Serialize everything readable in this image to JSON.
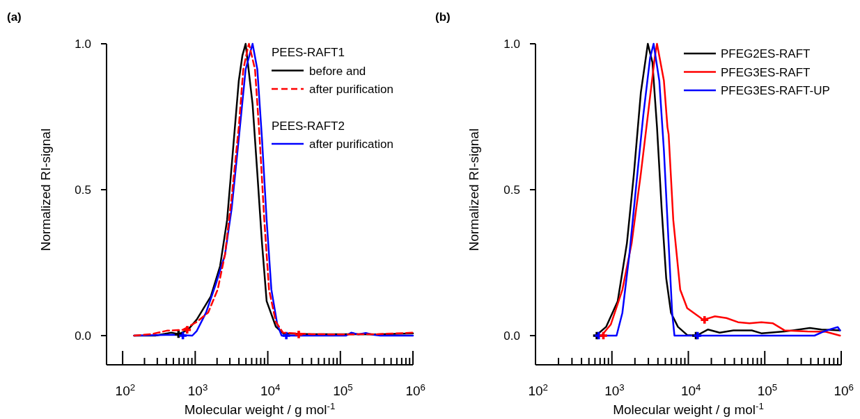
{
  "chart_data": [
    {
      "type": "line",
      "title": "(a)",
      "xlabel": "Molecular weight / g mol$^{-1}$",
      "ylabel": "Normalized RI-signal",
      "log": "x",
      "legend": "top right",
      "legend_title": "PEES-RAFT1",
      "annotations": [
        "PEES-RAFT2"
      ],
      "xlim": [
        60,
        1000000
      ],
      "ylim": [
        -0.1,
        1.0
      ],
      "xticks": [
        {
          "value": 100,
          "label": "10$^{2}$"
        },
        {
          "value": 200,
          "label": null
        },
        {
          "value": 300,
          "label": null
        },
        {
          "value": 400,
          "label": null
        },
        {
          "value": 500,
          "label": null
        },
        {
          "value": 600,
          "label": null
        },
        {
          "value": 700,
          "label": null
        },
        {
          "value": 800,
          "label": null
        },
        {
          "value": 900,
          "label": null
        },
        {
          "value": 1000,
          "label": "10$^{3}$"
        },
        {
          "value": 2000,
          "label": null
        },
        {
          "value": 3000,
          "label": null
        },
        {
          "value": 4000,
          "label": null
        },
        {
          "value": 5000,
          "label": null
        },
        {
          "value": 6000,
          "label": null
        },
        {
          "value": 7000,
          "label": null
        },
        {
          "value": 8000,
          "label": null
        },
        {
          "value": 9000,
          "label": null
        },
        {
          "value": 10000,
          "label": "10$^{4}$"
        },
        {
          "value": 20000,
          "label": null
        },
        {
          "value": 30000,
          "label": null
        },
        {
          "value": 40000,
          "label": null
        },
        {
          "value": 50000,
          "label": null
        },
        {
          "value": 60000,
          "label": null
        },
        {
          "value": 70000,
          "label": null
        },
        {
          "value": 80000,
          "label": null
        },
        {
          "value": 90000,
          "label": null
        },
        {
          "value": 100000,
          "label": "10$^{5}$"
        },
        {
          "value": 200000,
          "label": null
        },
        {
          "value": 300000,
          "label": null
        },
        {
          "value": 400000,
          "label": null
        },
        {
          "value": 500000,
          "label": null
        },
        {
          "value": 600000,
          "label": null
        },
        {
          "value": 700000,
          "label": null
        },
        {
          "value": 800000,
          "label": null
        },
        {
          "value": 900000,
          "label": null
        },
        {
          "value": 1000000,
          "label": "10$^{6}$"
        }
      ],
      "yticks": [
        {
          "value": 0,
          "label": "0.0"
        },
        {
          "value": 0.5,
          "label": "0.5"
        },
        {
          "value": 1,
          "label": "1.0"
        }
      ],
      "series": [
        {
          "name": "before and",
          "color": "#000000",
          "line_style": "solid",
          "x": [
            144,
            282,
            468,
            589,
            794,
            1050,
            1640,
            2200,
            2750,
            3310,
            3980,
            4470,
            4950,
            6170,
            7180,
            8320,
            9640,
            12900,
            16200,
            39800,
            100000,
            316000,
            1000000
          ],
          "values": [
            0,
            0,
            0.01,
            0.005,
            0.02,
            0.055,
            0.134,
            0.238,
            0.396,
            0.634,
            0.872,
            0.96,
            1.0,
            0.793,
            0.555,
            0.317,
            0.118,
            0.031,
            0.008,
            0.005,
            0.005,
            0.004,
            0.008
          ]
        },
        {
          "name": "after purification",
          "color": "#ff0000",
          "line_style": "dashed",
          "x": [
            144,
            251,
            407,
            676,
            1050,
            1510,
            2040,
            2570,
            3180,
            3980,
            4600,
            5350,
            5500,
            6670,
            7730,
            8950,
            10400,
            12900,
            16200,
            39800,
            100000,
            316000,
            1000000
          ],
          "values": [
            0,
            0.005,
            0.017,
            0.02,
            0.047,
            0.079,
            0.158,
            0.277,
            0.475,
            0.714,
            0.912,
            0.99,
            1.0,
            0.912,
            0.674,
            0.396,
            0.158,
            0.047,
            0.01,
            0.005,
            0.004,
            0.005,
            0.01
          ]
        },
        {
          "name": "after purification",
          "color": "#0000ff",
          "line_style": "solid",
          "x": [
            144,
            501,
            912,
            1050,
            1410,
            1910,
            2570,
            3180,
            3980,
            4950,
            6170,
            7180,
            8320,
            9640,
            11200,
            13500,
            15500,
            120000,
            141000,
            178000,
            224000,
            282000,
            355000,
            1000000
          ],
          "values": [
            0,
            0.003,
            0,
            0.016,
            0.079,
            0.174,
            0.277,
            0.436,
            0.674,
            0.912,
            1.0,
            0.912,
            0.674,
            0.396,
            0.158,
            0.039,
            0,
            0,
            0.01,
            0.004,
            0.009,
            0.003,
            0,
            0
          ]
        },
        {
          "type": "scatter",
          "marker": "cross",
          "color": "#000000",
          "x": [
            589
          ],
          "values": [
            0.005
          ]
        },
        {
          "type": "scatter",
          "marker": "cross",
          "color": "#ff0000",
          "x": [
            774,
            26700
          ],
          "values": [
            0.02,
            0.004
          ]
        },
        {
          "type": "scatter",
          "marker": "cross",
          "color": "#0000ff",
          "x": [
            676,
            18000
          ],
          "values": [
            0,
            0
          ]
        }
      ]
    },
    {
      "type": "line",
      "title": "(b)",
      "xlabel": "Molecular weight / g mol$^{-1}$",
      "ylabel": "Normalized RI-signal",
      "log": "x",
      "legend": "top right",
      "xlim": [
        100,
        1000000
      ],
      "ylim": [
        -0.1,
        1.0
      ],
      "xticks": [
        {
          "value": 100,
          "label": "10$^{2}$"
        },
        {
          "value": 200,
          "label": null
        },
        {
          "value": 300,
          "label": null
        },
        {
          "value": 400,
          "label": null
        },
        {
          "value": 500,
          "label": null
        },
        {
          "value": 600,
          "label": null
        },
        {
          "value": 700,
          "label": null
        },
        {
          "value": 800,
          "label": null
        },
        {
          "value": 900,
          "label": null
        },
        {
          "value": 1000,
          "label": "10$^{3}$"
        },
        {
          "value": 2000,
          "label": null
        },
        {
          "value": 3000,
          "label": null
        },
        {
          "value": 4000,
          "label": null
        },
        {
          "value": 5000,
          "label": null
        },
        {
          "value": 6000,
          "label": null
        },
        {
          "value": 7000,
          "label": null
        },
        {
          "value": 8000,
          "label": null
        },
        {
          "value": 9000,
          "label": null
        },
        {
          "value": 10000,
          "label": "10$^{4}$"
        },
        {
          "value": 20000,
          "label": null
        },
        {
          "value": 30000,
          "label": null
        },
        {
          "value": 40000,
          "label": null
        },
        {
          "value": 50000,
          "label": null
        },
        {
          "value": 60000,
          "label": null
        },
        {
          "value": 70000,
          "label": null
        },
        {
          "value": 80000,
          "label": null
        },
        {
          "value": 90000,
          "label": null
        },
        {
          "value": 100000,
          "label": "10$^{5}$"
        },
        {
          "value": 200000,
          "label": null
        },
        {
          "value": 300000,
          "label": null
        },
        {
          "value": 400000,
          "label": null
        },
        {
          "value": 500000,
          "label": null
        },
        {
          "value": 600000,
          "label": null
        },
        {
          "value": 700000,
          "label": null
        },
        {
          "value": 800000,
          "label": null
        },
        {
          "value": 900000,
          "label": null
        },
        {
          "value": 1000000,
          "label": "10$^{6}$"
        }
      ],
      "yticks": [
        {
          "value": 0,
          "label": "0.0"
        },
        {
          "value": 0.5,
          "label": "0.5"
        },
        {
          "value": 1,
          "label": "1.0"
        }
      ],
      "series": [
        {
          "name": "PFEG2ES-RAFT",
          "color": "#000000",
          "line_style": "solid",
          "x": [
            617,
            839,
            1190,
            1570,
            1940,
            2390,
            2950,
            3390,
            3890,
            4470,
            5130,
            5930,
            7310,
            9660,
            12800,
            18100,
            25700,
            38900,
            67600,
            90200,
            181000,
            389000,
            550000,
            966000
          ],
          "values": [
            0,
            0.03,
            0.118,
            0.316,
            0.555,
            0.833,
            1.0,
            0.936,
            0.714,
            0.436,
            0.197,
            0.078,
            0.03,
            0.002,
            0,
            0.021,
            0.01,
            0.018,
            0.018,
            0.008,
            0.014,
            0.026,
            0.021,
            0.018
          ]
        },
        {
          "name": "PFEG3ES-RAFT",
          "color": "#ff0000",
          "line_style": "solid",
          "x": [
            731,
            966,
            1370,
            1810,
            2390,
            2950,
            3630,
            3890,
            4790,
            5330,
            5520,
            6350,
            7830,
            9660,
            15700,
            22300,
            31600,
            44700,
            63100,
            90200,
            128000,
            181000,
            363000,
            631000,
            966000
          ],
          "values": [
            0,
            0.038,
            0.157,
            0.316,
            0.555,
            0.754,
            0.952,
            1.0,
            0.873,
            0.714,
            0.69,
            0.396,
            0.157,
            0.094,
            0.054,
            0.066,
            0.06,
            0.046,
            0.042,
            0.046,
            0.042,
            0.018,
            0.014,
            0.013,
            0
          ]
        },
        {
          "name": "PFEG3ES-RAFT-UP",
          "color": "#0000ff",
          "line_style": "solid",
          "x": [
            635,
            1150,
            1370,
            1690,
            2080,
            2570,
            3160,
            3510,
            4170,
            4790,
            5520,
            6140,
            6580,
            447000,
            589000,
            731000,
            902000,
            966000
          ],
          "values": [
            0,
            0,
            0.078,
            0.277,
            0.515,
            0.754,
            0.952,
            1.0,
            0.873,
            0.634,
            0.316,
            0.078,
            0,
            0,
            0.014,
            0.022,
            0.029,
            0.018
          ]
        },
        {
          "type": "scatter",
          "marker": "cross",
          "color": "#000000",
          "x": [
            635,
            12600
          ],
          "values": [
            0,
            0
          ]
        },
        {
          "type": "scatter",
          "marker": "cross",
          "color": "#0000ff",
          "x": [
            671,
            13200
          ],
          "values": [
            0,
            0
          ]
        },
        {
          "type": "scatter",
          "marker": "cross",
          "color": "#ff0000",
          "x": [
            773,
            16300
          ],
          "values": [
            0,
            0.054
          ]
        }
      ]
    }
  ]
}
